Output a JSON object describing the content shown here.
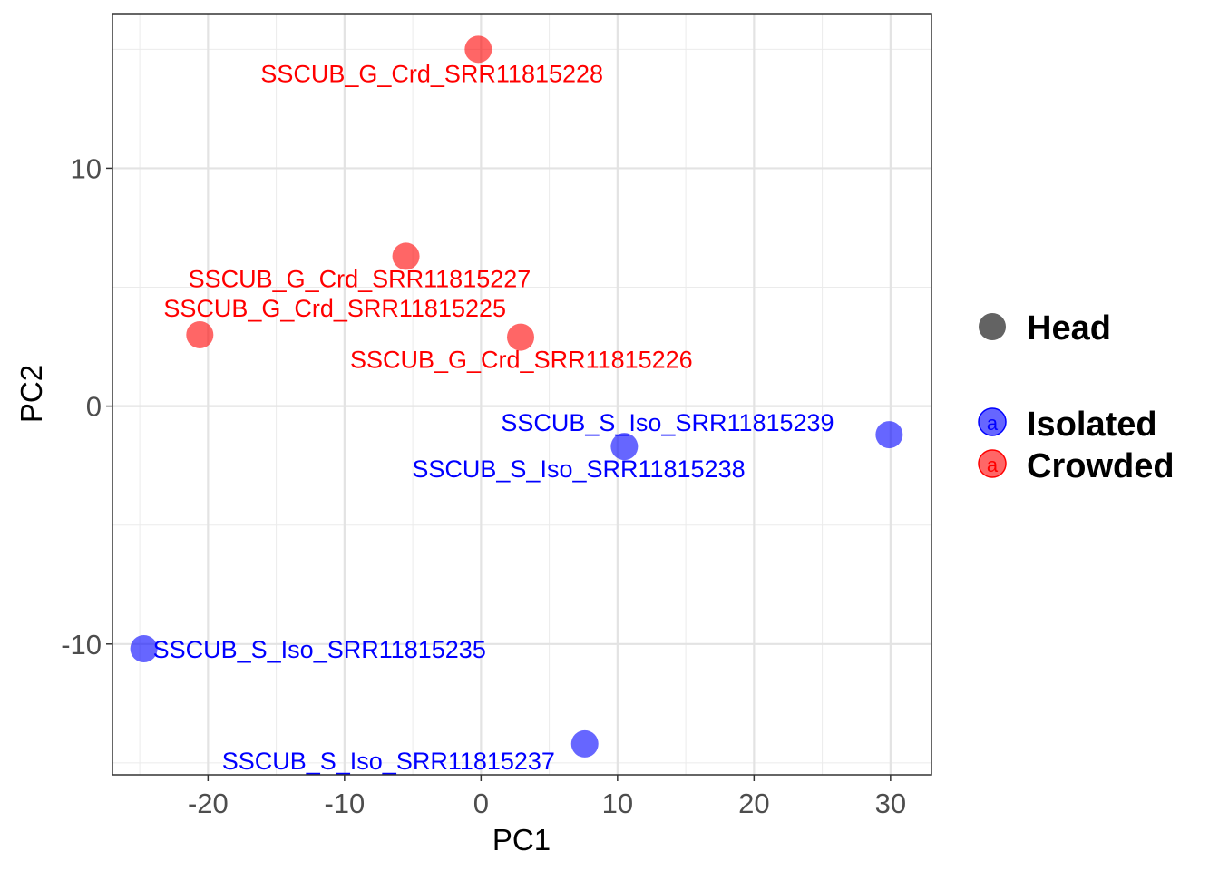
{
  "chart_data": {
    "type": "scatter",
    "xlabel": "PC1",
    "ylabel": "PC2",
    "xlim": [
      -27,
      33
    ],
    "ylim": [
      -15.5,
      16.5
    ],
    "x_ticks": [
      -20,
      -10,
      0,
      10,
      20,
      30
    ],
    "y_ticks": [
      -10,
      0,
      10
    ],
    "grid": true,
    "legend": {
      "placement": "right",
      "shape_label": "Head",
      "shape_color": "#636363",
      "entries": [
        {
          "name": "Isolated",
          "color": "#0000FF",
          "glyph": "a"
        },
        {
          "name": "Crowded",
          "color": "#FF0000",
          "glyph": "a"
        }
      ]
    },
    "series": [
      {
        "name": "Crowded",
        "color": "#FF0000",
        "points": [
          {
            "x": -0.2,
            "y": 15.0,
            "label": "SSCUB_G_Crd_SRR11815228"
          },
          {
            "x": -5.5,
            "y": 6.3,
            "label": "SSCUB_G_Crd_SRR11815227"
          },
          {
            "x": -20.6,
            "y": 3.0,
            "label": "SSCUB_G_Crd_SRR11815225"
          },
          {
            "x": 2.9,
            "y": 2.9,
            "label": "SSCUB_G_Crd_SRR11815226"
          }
        ]
      },
      {
        "name": "Isolated",
        "color": "#0000FF",
        "points": [
          {
            "x": 29.9,
            "y": -1.2,
            "label": "SSCUB_S_Iso_SRR11815239"
          },
          {
            "x": 10.5,
            "y": -1.7,
            "label": "SSCUB_S_Iso_SRR11815238"
          },
          {
            "x": -24.7,
            "y": -10.2,
            "label": "SSCUB_S_Iso_SRR11815235"
          },
          {
            "x": 7.6,
            "y": -14.2,
            "label": "SSCUB_S_Iso_SRR11815237"
          }
        ]
      }
    ]
  }
}
